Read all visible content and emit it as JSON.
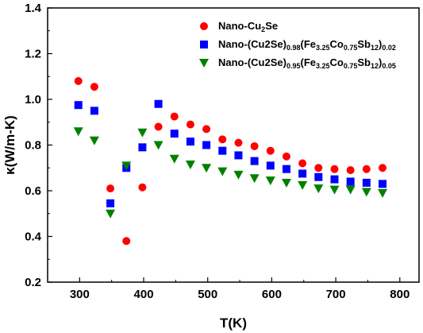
{
  "chart_data": {
    "type": "scatter",
    "xlabel": "T(K)",
    "ylabel": "κ(W/m-K)",
    "xlim": [
      250,
      830
    ],
    "ylim": [
      0.2,
      1.4
    ],
    "xticks": [
      "300",
      "400",
      "500",
      "600",
      "700",
      "800"
    ],
    "yticks": [
      "0.2",
      "0.4",
      "0.6",
      "0.8",
      "1.0",
      "1.2",
      "1.4"
    ],
    "legend_position": "top-right",
    "grid": false,
    "series": [
      {
        "name": "Nano-Cu2Se",
        "legend_parts": [
          {
            "t": "Nano-Cu",
            "s": "n"
          },
          {
            "t": "2",
            "s": "sub"
          },
          {
            "t": "Se",
            "s": "n"
          }
        ],
        "marker": "circle",
        "color": "#ff0000",
        "points": [
          [
            298,
            1.08
          ],
          [
            323,
            1.055
          ],
          [
            348,
            0.61
          ],
          [
            373,
            0.38
          ],
          [
            398,
            0.615
          ],
          [
            423,
            0.88
          ],
          [
            448,
            0.925
          ],
          [
            473,
            0.89
          ],
          [
            498,
            0.87
          ],
          [
            523,
            0.825
          ],
          [
            548,
            0.81
          ],
          [
            573,
            0.795
          ],
          [
            598,
            0.775
          ],
          [
            623,
            0.75
          ],
          [
            648,
            0.72
          ],
          [
            673,
            0.7
          ],
          [
            698,
            0.695
          ],
          [
            723,
            0.69
          ],
          [
            748,
            0.695
          ],
          [
            773,
            0.7
          ]
        ]
      },
      {
        "name": "Nano-(Cu2Se)0.98(Fe3.25Co0.75Sb12)0.02",
        "legend_parts": [
          {
            "t": "Nano-(Cu2Se)",
            "s": "n"
          },
          {
            "t": "0.98",
            "s": "sub"
          },
          {
            "t": "(Fe",
            "s": "n"
          },
          {
            "t": "3.25",
            "s": "sub"
          },
          {
            "t": "Co",
            "s": "n"
          },
          {
            "t": "0.75",
            "s": "sub"
          },
          {
            "t": "Sb",
            "s": "n"
          },
          {
            "t": "12",
            "s": "sub"
          },
          {
            "t": ")",
            "s": "n"
          },
          {
            "t": "0.02",
            "s": "sub"
          }
        ],
        "marker": "square",
        "color": "#0000ff",
        "points": [
          [
            298,
            0.975
          ],
          [
            323,
            0.95
          ],
          [
            348,
            0.545
          ],
          [
            373,
            0.7
          ],
          [
            398,
            0.79
          ],
          [
            423,
            0.98
          ],
          [
            448,
            0.85
          ],
          [
            473,
            0.815
          ],
          [
            498,
            0.8
          ],
          [
            523,
            0.775
          ],
          [
            548,
            0.755
          ],
          [
            573,
            0.73
          ],
          [
            598,
            0.71
          ],
          [
            623,
            0.695
          ],
          [
            648,
            0.675
          ],
          [
            673,
            0.66
          ],
          [
            698,
            0.65
          ],
          [
            723,
            0.64
          ],
          [
            748,
            0.635
          ],
          [
            773,
            0.63
          ]
        ]
      },
      {
        "name": "Nano-(Cu2Se)0.95(Fe3.25Co0.75Sb12)0.05",
        "legend_parts": [
          {
            "t": "Nano-(Cu2Se)",
            "s": "n"
          },
          {
            "t": "0.95",
            "s": "sub"
          },
          {
            "t": "(Fe",
            "s": "n"
          },
          {
            "t": "3.25",
            "s": "sub"
          },
          {
            "t": "Co",
            "s": "n"
          },
          {
            "t": "0.75",
            "s": "sub"
          },
          {
            "t": "Sb",
            "s": "n"
          },
          {
            "t": "12",
            "s": "sub"
          },
          {
            "t": ")",
            "s": "n"
          },
          {
            "t": "0.05",
            "s": "sub"
          }
        ],
        "marker": "triangle-down",
        "color": "#008000",
        "points": [
          [
            298,
            0.86
          ],
          [
            323,
            0.82
          ],
          [
            348,
            0.5
          ],
          [
            373,
            0.71
          ],
          [
            398,
            0.855
          ],
          [
            423,
            0.8
          ],
          [
            448,
            0.74
          ],
          [
            473,
            0.715
          ],
          [
            498,
            0.7
          ],
          [
            523,
            0.685
          ],
          [
            548,
            0.67
          ],
          [
            573,
            0.655
          ],
          [
            598,
            0.645
          ],
          [
            623,
            0.635
          ],
          [
            648,
            0.625
          ],
          [
            673,
            0.61
          ],
          [
            698,
            0.605
          ],
          [
            723,
            0.605
          ],
          [
            748,
            0.595
          ],
          [
            773,
            0.59
          ]
        ]
      }
    ]
  }
}
